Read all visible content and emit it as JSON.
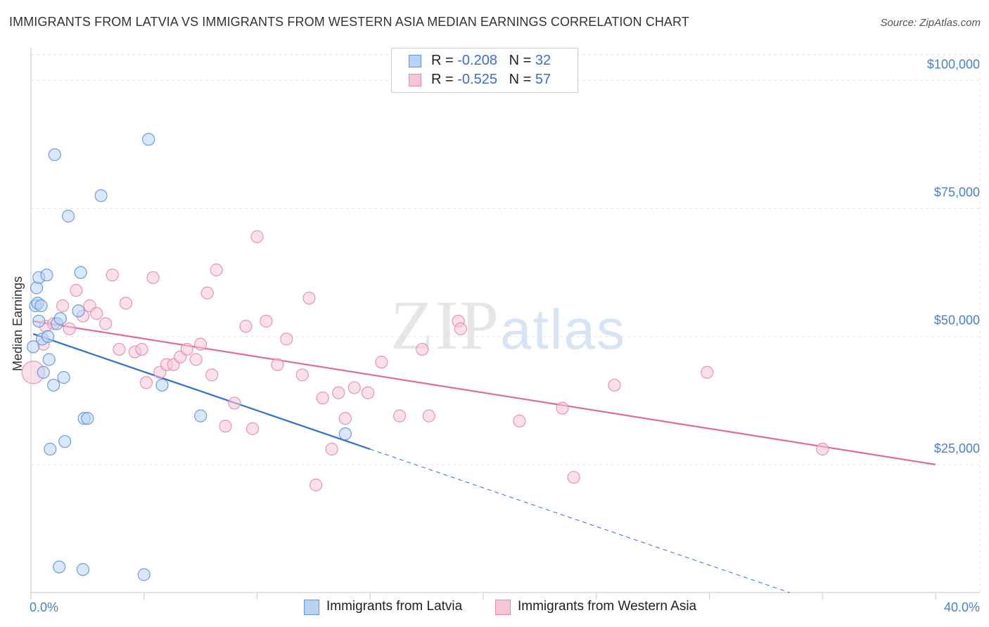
{
  "title": "IMMIGRANTS FROM LATVIA VS IMMIGRANTS FROM WESTERN ASIA MEDIAN EARNINGS CORRELATION CHART",
  "source": "Source: ZipAtlas.com",
  "watermark": {
    "zip": "ZIP",
    "atlas": "atlas"
  },
  "legend": {
    "latvia": {
      "r_label": "R = ",
      "r_value": "-0.208",
      "n_label": "N = ",
      "n_value": "32"
    },
    "western_asia": {
      "r_label": "R = ",
      "r_value": "-0.525",
      "n_label": "N = ",
      "n_value": "57"
    }
  },
  "colors": {
    "latvia_fill": "#b8d3f5",
    "latvia_stroke": "#5d95dc",
    "latvia_line": "#2f6fd0",
    "wasia_fill": "#f7c6d6",
    "wasia_stroke": "#e68aaa",
    "wasia_line": "#e06b93",
    "grid": "#e2e2e2",
    "tick_label": "#4a7fd0"
  },
  "chart_data": {
    "type": "scatter",
    "title": "IMMIGRANTS FROM LATVIA VS IMMIGRANTS FROM WESTERN ASIA MEDIAN EARNINGS CORRELATION CHART",
    "xlabel": "",
    "ylabel": "Median Earnings",
    "xlim": [
      0,
      40
    ],
    "ylim": [
      0,
      105000
    ],
    "x_tick_labels": [
      "0.0%",
      "40.0%"
    ],
    "y_ticks": [
      25000,
      50000,
      75000,
      100000
    ],
    "y_tick_labels": [
      "$25,000",
      "$50,000",
      "$75,000",
      "$100,000"
    ],
    "series": [
      {
        "name": "Immigrants from Latvia",
        "points": [
          [
            0.1,
            48000
          ],
          [
            0.2,
            56000
          ],
          [
            0.25,
            59500
          ],
          [
            0.3,
            56500
          ],
          [
            0.35,
            61500
          ],
          [
            0.45,
            56000
          ],
          [
            0.5,
            49500
          ],
          [
            0.55,
            43000
          ],
          [
            0.7,
            62000
          ],
          [
            0.75,
            50000
          ],
          [
            0.8,
            45500
          ],
          [
            0.85,
            28000
          ],
          [
            1.0,
            40500
          ],
          [
            1.05,
            85500
          ],
          [
            1.15,
            52500
          ],
          [
            1.25,
            5000
          ],
          [
            1.3,
            53500
          ],
          [
            1.45,
            42000
          ],
          [
            1.5,
            29500
          ],
          [
            1.65,
            73500
          ],
          [
            2.1,
            55000
          ],
          [
            2.2,
            62500
          ],
          [
            2.3,
            4500
          ],
          [
            2.35,
            34000
          ],
          [
            2.5,
            34000
          ],
          [
            3.1,
            77500
          ],
          [
            5.0,
            3500
          ],
          [
            5.2,
            88500
          ],
          [
            5.8,
            40500
          ],
          [
            7.5,
            34500
          ],
          [
            13.9,
            31000
          ],
          [
            0.35,
            53000
          ]
        ],
        "trend": {
          "x": [
            0.1,
            15.0
          ],
          "y": [
            50500,
            28000
          ],
          "dashed_to": [
            40.0,
            -9000
          ]
        }
      },
      {
        "name": "Immigrants from Western Asia",
        "points": [
          [
            0.1,
            43000
          ],
          [
            0.55,
            48500
          ],
          [
            0.65,
            52000
          ],
          [
            1.0,
            52500
          ],
          [
            1.4,
            56000
          ],
          [
            1.7,
            51500
          ],
          [
            2.0,
            59000
          ],
          [
            2.3,
            54000
          ],
          [
            2.6,
            56000
          ],
          [
            2.9,
            54500
          ],
          [
            3.3,
            52500
          ],
          [
            3.6,
            62000
          ],
          [
            3.9,
            47500
          ],
          [
            4.2,
            56500
          ],
          [
            4.6,
            47000
          ],
          [
            4.9,
            47500
          ],
          [
            5.1,
            41000
          ],
          [
            5.4,
            61500
          ],
          [
            5.7,
            43000
          ],
          [
            6.0,
            44500
          ],
          [
            6.3,
            44500
          ],
          [
            6.6,
            46000
          ],
          [
            6.9,
            47500
          ],
          [
            7.3,
            45500
          ],
          [
            7.5,
            48500
          ],
          [
            7.8,
            58500
          ],
          [
            8.2,
            63000
          ],
          [
            8.0,
            42500
          ],
          [
            8.6,
            32500
          ],
          [
            9.0,
            37000
          ],
          [
            9.5,
            52000
          ],
          [
            9.8,
            32000
          ],
          [
            10.4,
            53000
          ],
          [
            10.9,
            44500
          ],
          [
            11.3,
            49500
          ],
          [
            10.0,
            69500
          ],
          [
            12.0,
            42500
          ],
          [
            12.3,
            57500
          ],
          [
            12.6,
            21000
          ],
          [
            12.9,
            38000
          ],
          [
            13.3,
            28000
          ],
          [
            13.6,
            39000
          ],
          [
            13.9,
            34000
          ],
          [
            14.3,
            40000
          ],
          [
            14.9,
            39000
          ],
          [
            15.5,
            45000
          ],
          [
            16.3,
            34500
          ],
          [
            17.3,
            47500
          ],
          [
            17.6,
            34500
          ],
          [
            18.9,
            53000
          ],
          [
            19.0,
            51500
          ],
          [
            21.6,
            33500
          ],
          [
            23.5,
            36000
          ],
          [
            24.0,
            22500
          ],
          [
            25.8,
            40500
          ],
          [
            29.9,
            43000
          ],
          [
            35.0,
            28000
          ]
        ],
        "trend": {
          "x": [
            0.1,
            40.0
          ],
          "y": [
            53000,
            25000
          ]
        }
      }
    ]
  },
  "bottom_legend": {
    "latvia_label": "Immigrants from Latvia",
    "wasia_label": "Immigrants from Western Asia"
  }
}
